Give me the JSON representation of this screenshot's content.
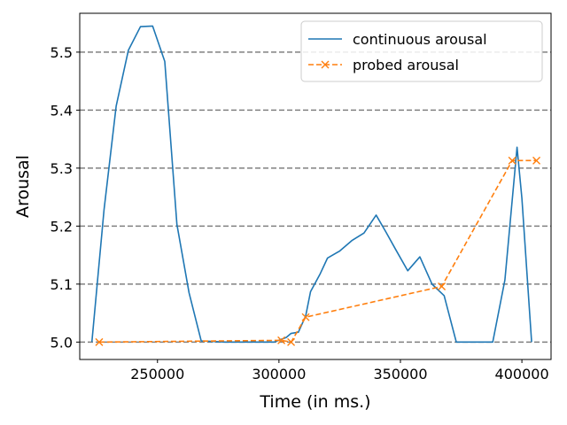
{
  "chart_data": {
    "type": "line",
    "xlabel": "Time (in ms.)",
    "ylabel": "Arousal",
    "xlim": [
      218000,
      412000
    ],
    "ylim": [
      4.97,
      5.567
    ],
    "xticks": [
      250000,
      300000,
      350000,
      400000
    ],
    "xtick_labels": [
      "250000",
      "300000",
      "350000",
      "400000"
    ],
    "yticks": [
      5.0,
      5.1,
      5.2,
      5.3,
      5.4,
      5.5
    ],
    "ytick_labels": [
      "5.0",
      "5.1",
      "5.2",
      "5.3",
      "5.4",
      "5.5"
    ],
    "grid": "horizontal dashed",
    "legend_position": "top-right",
    "series": [
      {
        "name": "continuous arousal",
        "color": "#1f77b4",
        "style": "solid",
        "marker": "none",
        "x": [
          223000,
          228000,
          233000,
          238000,
          243000,
          248000,
          253000,
          258000,
          263000,
          268000,
          273000,
          278000,
          283000,
          288000,
          293000,
          298000,
          303000,
          305000,
          308000,
          311000,
          313000,
          317000,
          320000,
          325000,
          330000,
          335000,
          340000,
          344000,
          348000,
          353000,
          358000,
          363000,
          368000,
          373000,
          378000,
          383000,
          388000,
          393000,
          398000,
          400000,
          404000
        ],
        "y": [
          5.0,
          5.228,
          5.407,
          5.503,
          5.544,
          5.545,
          5.484,
          5.203,
          5.085,
          5.002,
          5.001,
          5.0,
          5.0,
          5.0,
          5.0,
          5.0,
          5.008,
          5.015,
          5.017,
          5.045,
          5.087,
          5.118,
          5.145,
          5.157,
          5.175,
          5.188,
          5.219,
          5.19,
          5.16,
          5.123,
          5.147,
          5.1,
          5.08,
          5.0,
          5.0,
          5.0,
          5.0,
          5.107,
          5.336,
          5.248,
          5.0
        ]
      },
      {
        "name": "probed arousal",
        "color": "#ff7f0e",
        "style": "dashed",
        "marker": "x",
        "x": [
          226000,
          301000,
          305000,
          311000,
          367000,
          396000,
          406000
        ],
        "y": [
          5.0,
          5.003,
          5.0,
          5.043,
          5.096,
          5.313,
          5.313
        ]
      }
    ]
  }
}
